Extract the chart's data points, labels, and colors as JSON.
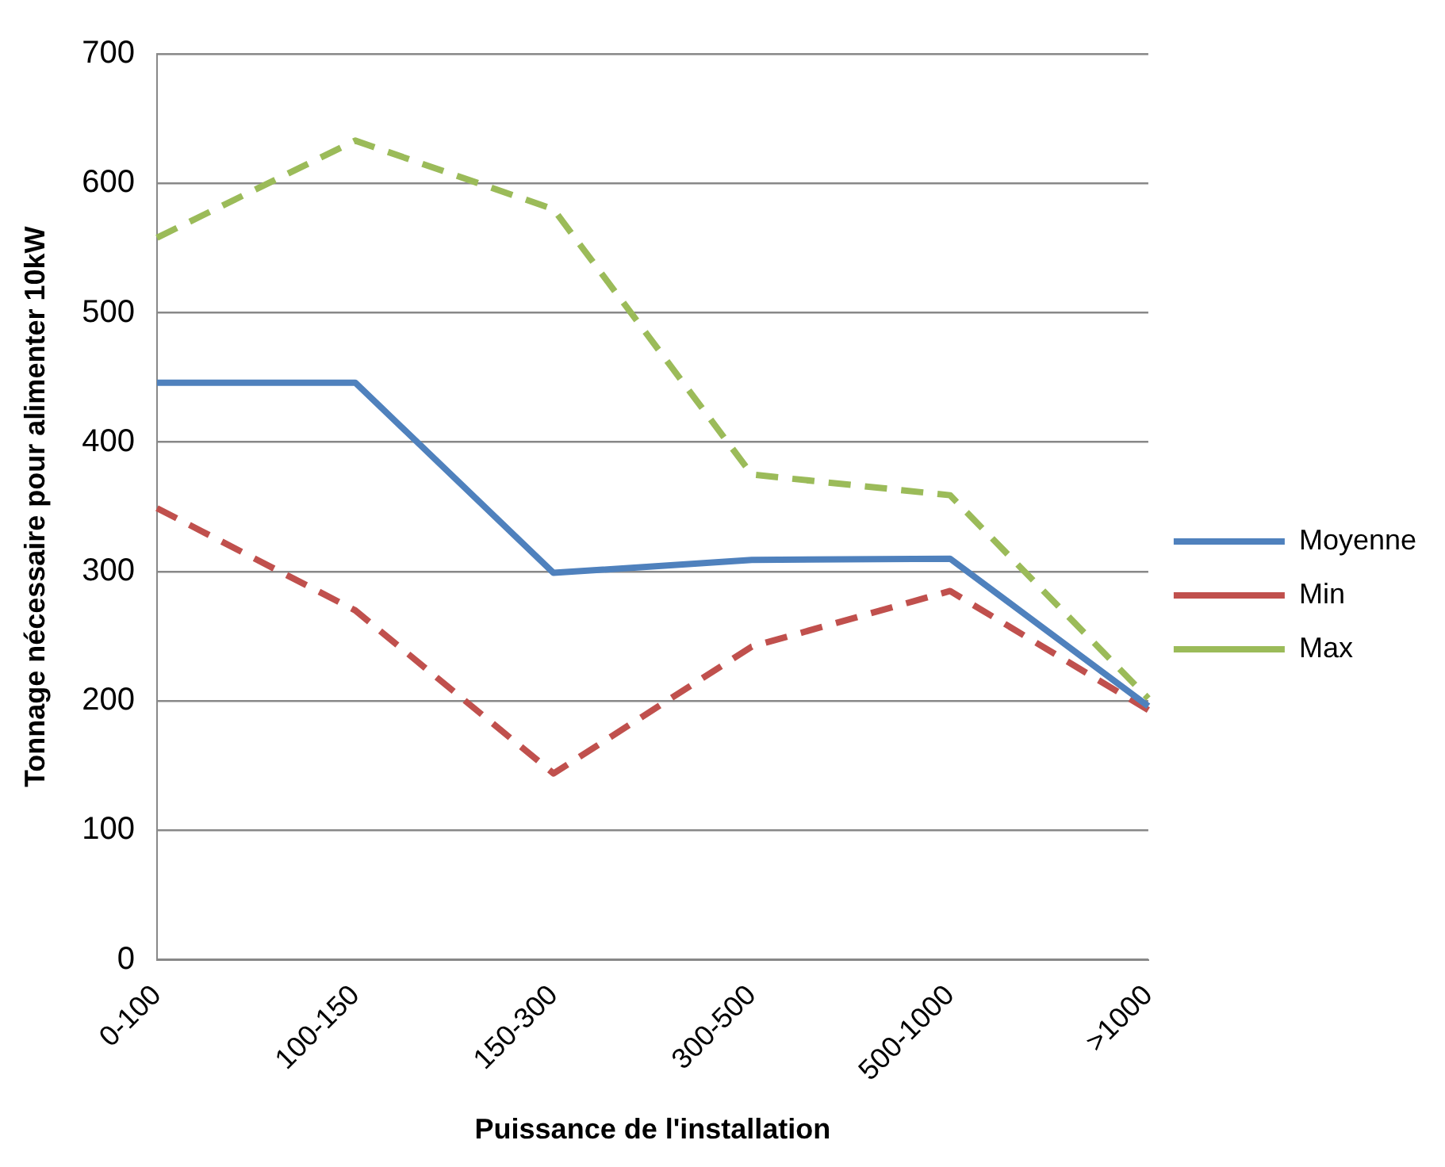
{
  "chart_data": {
    "type": "line",
    "xlabel": "Puissance de l'installation",
    "ylabel": "Tonnage nécessaire pour alimenter 10kW",
    "categories": [
      "0-100",
      "100-150",
      "150-300",
      "300-500",
      "500-1000",
      ">1000"
    ],
    "series": [
      {
        "name": "Moyenne",
        "color": "#4f81bd",
        "line_style": "solid",
        "values": [
          446,
          446,
          299,
          309,
          310,
          196
        ]
      },
      {
        "name": "Min",
        "color": "#c0504d",
        "line_style": "dashed",
        "values": [
          349,
          270,
          144,
          242,
          285,
          193
        ]
      },
      {
        "name": "Max",
        "color": "#9bbb59",
        "line_style": "dashed",
        "values": [
          558,
          633,
          580,
          375,
          359,
          202
        ]
      }
    ],
    "ylim": [
      0,
      700
    ],
    "yticks": [
      0,
      100,
      200,
      300,
      400,
      500,
      600,
      700
    ],
    "grid": "y",
    "legend": "right",
    "marker": "none"
  }
}
